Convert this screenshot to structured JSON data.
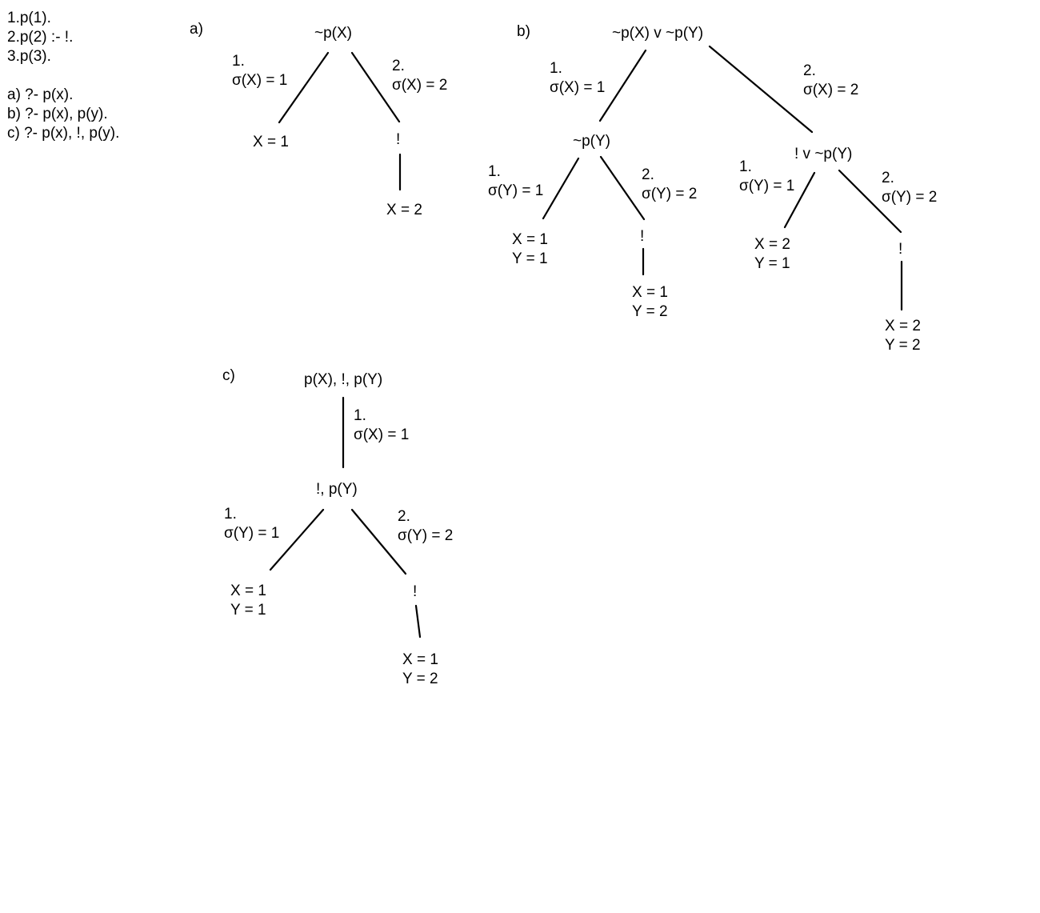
{
  "program": {
    "clauses": [
      "1.p(1).",
      "2.p(2) :- !.",
      "3.p(3)."
    ],
    "queries": [
      "a) ?- p(x).",
      "b) ?- p(x), p(y).",
      "c) ?- p(x), !, p(y)."
    ]
  },
  "tree_a": {
    "label": "a)",
    "root": "~p(X)",
    "edge1": [
      "1.",
      "σ(X) = 1"
    ],
    "edge2": [
      "2.",
      "σ(X) = 2"
    ],
    "leaf1": "X = 1",
    "cut": "!",
    "leaf2": "X = 2"
  },
  "tree_b": {
    "label": "b)",
    "root": "~p(X) v ~p(Y)",
    "edge1": [
      "1.",
      "σ(X) = 1"
    ],
    "edge2": [
      "2.",
      "σ(X) = 2"
    ],
    "left_node": "~p(Y)",
    "right_node": "! v ~p(Y)",
    "left_edge1": [
      "1.",
      "σ(Y) = 1"
    ],
    "left_edge2": [
      "2.",
      "σ(Y) = 2"
    ],
    "right_edge1": [
      "1.",
      "σ(Y) = 1"
    ],
    "right_edge2": [
      "2.",
      "σ(Y) = 2"
    ],
    "leaf_ll": [
      "X = 1",
      "Y = 1"
    ],
    "cut_l": "!",
    "leaf_lr": [
      "X = 1",
      "Y = 2"
    ],
    "leaf_rl": [
      "X = 2",
      "Y = 1"
    ],
    "cut_r": "!",
    "leaf_rr": [
      "X = 2",
      "Y = 2"
    ]
  },
  "tree_c": {
    "label": "c)",
    "root": "p(X), !, p(Y)",
    "edge_root": [
      "1.",
      "σ(X) = 1"
    ],
    "mid_node": "!, p(Y)",
    "edge1": [
      "1.",
      "σ(Y) = 1"
    ],
    "edge2": [
      "2.",
      "σ(Y) = 2"
    ],
    "leaf1": [
      "X = 1",
      "Y = 1"
    ],
    "cut": "!",
    "leaf2": [
      "X = 1",
      "Y = 2"
    ]
  }
}
